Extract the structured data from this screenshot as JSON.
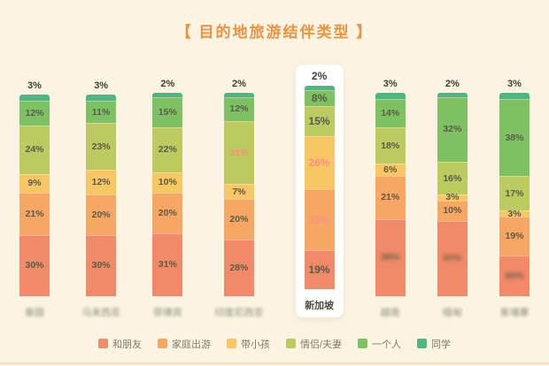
{
  "page": {
    "background_color": "#fcf4e3",
    "title_color": "#ef923d",
    "emphasis_label_color": "#fb8f80"
  },
  "chart_data": {
    "type": "bar",
    "subtype": "stacked-percentage-bar",
    "title": "【 目的地旅游结伴类型 】",
    "unit": "%",
    "ylim": [
      0,
      100
    ],
    "legend_position": "bottom",
    "grid": false,
    "series": [
      {
        "name": "和朋友",
        "color": "#f08a68"
      },
      {
        "name": "家庭出游",
        "color": "#f5a763"
      },
      {
        "name": "带小孩",
        "color": "#f6c763"
      },
      {
        "name": "情侣/夫妻",
        "color": "#bdca5f"
      },
      {
        "name": "一个人",
        "color": "#7ec163"
      },
      {
        "name": "同学",
        "color": "#49b984"
      }
    ],
    "bars": [
      {
        "label": "泰国",
        "values": [
          30,
          21,
          9,
          24,
          12,
          3
        ],
        "blur_label": true,
        "blur_bottom_value": false,
        "highlight": false
      },
      {
        "label": "马来西亚",
        "values": [
          30,
          20,
          12,
          23,
          11,
          3
        ],
        "blur_label": true,
        "blur_bottom_value": false,
        "highlight": false
      },
      {
        "label": "菲律宾",
        "values": [
          31,
          20,
          10,
          22,
          15,
          2
        ],
        "blur_label": true,
        "blur_bottom_value": false,
        "highlight": false
      },
      {
        "label": "印度尼西亚",
        "values": [
          28,
          20,
          7,
          31,
          12,
          2
        ],
        "blur_label": true,
        "blur_bottom_value": false,
        "highlight": false
      },
      {
        "label": "新加坡",
        "values": [
          19,
          30,
          26,
          15,
          8,
          2
        ],
        "blur_label": false,
        "blur_bottom_value": false,
        "highlight": true
      },
      {
        "label": "越南",
        "values": [
          38,
          21,
          6,
          18,
          14,
          3
        ],
        "blur_label": true,
        "blur_bottom_value": true,
        "highlight": false
      },
      {
        "label": "缅甸",
        "values": [
          37,
          10,
          3,
          16,
          32,
          2
        ],
        "blur_label": true,
        "blur_bottom_value": true,
        "highlight": false
      },
      {
        "label": "柬埔寨",
        "values": [
          20,
          19,
          3,
          17,
          38,
          3
        ],
        "blur_label": true,
        "blur_bottom_value": true,
        "highlight": false
      }
    ],
    "emphasis_labels": [
      {
        "bar_index": 3,
        "series_index": 3,
        "display": "31%"
      },
      {
        "bar_index": 4,
        "series_index": 1,
        "display": "30%"
      },
      {
        "bar_index": 4,
        "series_index": 2,
        "display": "26%"
      }
    ],
    "legend": [
      "和朋友",
      "家庭出游",
      "带小孩",
      "情侣/夫妻",
      "一个人",
      "同学"
    ]
  }
}
